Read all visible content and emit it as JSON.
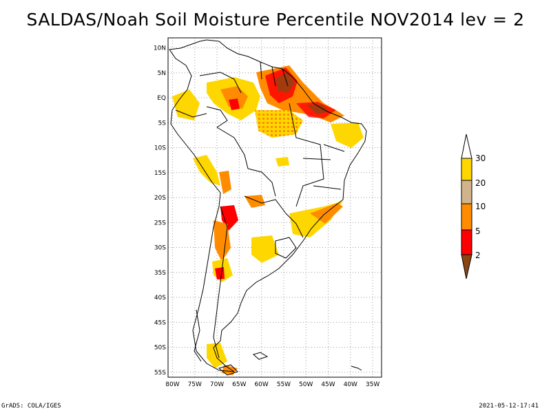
{
  "title": "SALDAS/Noah Soil Moisture Percentile NOV2014 lev = 2",
  "map": {
    "lat_labels": [
      "10N",
      "5N",
      "EQ",
      "5S",
      "10S",
      "15S",
      "20S",
      "25S",
      "30S",
      "35S",
      "40S",
      "45S",
      "50S",
      "55S"
    ],
    "lon_labels": [
      "80W",
      "75W",
      "70W",
      "65W",
      "60W",
      "55W",
      "50W",
      "45W",
      "40W",
      "35W"
    ],
    "lon_range": [
      -81,
      -33
    ],
    "lat_range": [
      -56,
      12
    ],
    "grid": true
  },
  "legend": {
    "labels": [
      "2",
      "5",
      "10",
      "20",
      "30"
    ],
    "colors": [
      "#8b4513",
      "#ff0000",
      "#ff8c00",
      "#d2b48c",
      "#ffd700",
      "#ffffff"
    ],
    "placement": "right"
  },
  "colors": {
    "extreme_dry": "#8b4513",
    "very_dry": "#ff0000",
    "dry": "#ff8c00",
    "moderate": "#d2b48c",
    "slightly_dry": "#ffd700"
  },
  "footer": {
    "left": "GrADS: COLA/IGES",
    "right": "2021-05-12-17:41"
  }
}
